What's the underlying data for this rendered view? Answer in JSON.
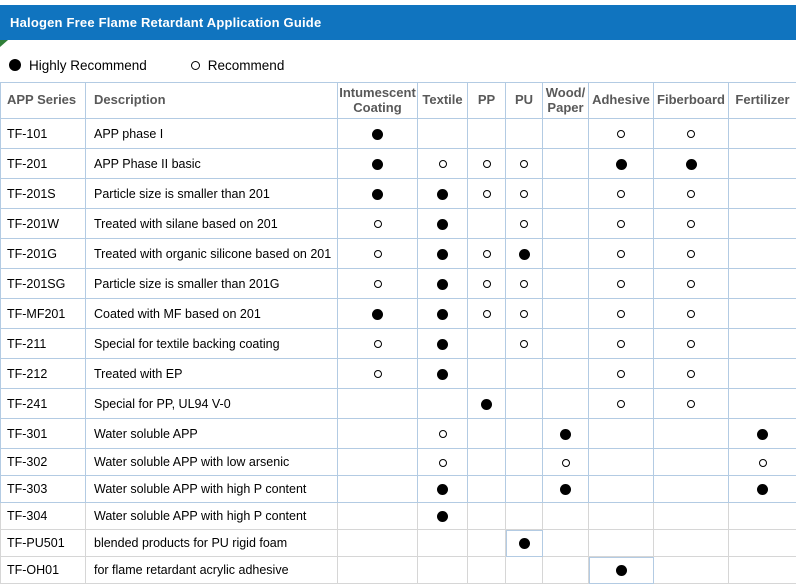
{
  "title": "Halogen Free Flame Retardant Application Guide",
  "legend": {
    "highly_label": "Highly Recommend",
    "recommend_label": "Recommend",
    "highly_symbol": "●",
    "recommend_symbol": "○"
  },
  "table": {
    "columns": [
      {
        "id": "app-series",
        "label": "APP Series"
      },
      {
        "id": "description",
        "label": "Description"
      },
      {
        "id": "intumescent-coating",
        "label": "Intumescent\nCoating"
      },
      {
        "id": "textile",
        "label": "Textile"
      },
      {
        "id": "pp",
        "label": "PP"
      },
      {
        "id": "pu",
        "label": "PU"
      },
      {
        "id": "wood-paper",
        "label": "Wood/\nPaper"
      },
      {
        "id": "adhesive",
        "label": "Adhesive"
      },
      {
        "id": "fiberboard",
        "label": "Fiberboard"
      },
      {
        "id": "fertilizer",
        "label": "Fertilizer"
      }
    ],
    "mark_meanings": {
      "F": "Highly Recommend",
      "O": "Recommend"
    },
    "rows": [
      {
        "series": "TF-101",
        "description": "APP phase I",
        "marks": [
          "F",
          "",
          "",
          "",
          "",
          "O",
          "O",
          ""
        ]
      },
      {
        "series": "TF-201",
        "description": "APP Phase II basic",
        "marks": [
          "F",
          "O",
          "O",
          "O",
          "",
          "F",
          "F",
          ""
        ]
      },
      {
        "series": "TF-201S",
        "description": "Particle size is smaller than 201",
        "marks": [
          "F",
          "F",
          "O",
          "O",
          "",
          "O",
          "O",
          ""
        ]
      },
      {
        "series": "TF-201W",
        "description": "Treated with silane based on 201",
        "marks": [
          "O",
          "F",
          "",
          "O",
          "",
          "O",
          "O",
          ""
        ]
      },
      {
        "series": "TF-201G",
        "description": "Treated with organic silicone based on 201",
        "marks": [
          "O",
          "F",
          "O",
          "F",
          "",
          "O",
          "O",
          ""
        ]
      },
      {
        "series": "TF-201SG",
        "description": "Particle size is smaller than 201G",
        "marks": [
          "O",
          "F",
          "O",
          "O",
          "",
          "O",
          "O",
          ""
        ]
      },
      {
        "series": "TF-MF201",
        "description": "Coated with MF based on 201",
        "marks": [
          "F",
          "F",
          "O",
          "O",
          "",
          "O",
          "O",
          ""
        ]
      },
      {
        "series": "TF-211",
        "description": "Special for textile backing coating",
        "marks": [
          "O",
          "F",
          "",
          "O",
          "",
          "O",
          "O",
          ""
        ]
      },
      {
        "series": "TF-212",
        "description": "Treated with EP",
        "marks": [
          "O",
          "F",
          "",
          "",
          "",
          "O",
          "O",
          ""
        ]
      },
      {
        "series": "TF-241",
        "description": "Special for PP, UL94 V-0",
        "marks": [
          "",
          "",
          "F",
          "",
          "",
          "O",
          "O",
          ""
        ]
      },
      {
        "series": "TF-301",
        "description": "Water soluble APP",
        "marks": [
          "",
          "O",
          "",
          "",
          "F",
          "",
          "",
          "F"
        ]
      },
      {
        "series": "TF-302",
        "description": "Water soluble APP with low arsenic",
        "marks": [
          "",
          "O",
          "",
          "",
          "O",
          "",
          "",
          "O"
        ]
      },
      {
        "series": "TF-303",
        "description": "Water soluble APP with high P content",
        "marks": [
          "",
          "F",
          "",
          "",
          "F",
          "",
          "",
          "F"
        ]
      },
      {
        "series": "TF-304",
        "description": "Water soluble APP with high P content",
        "marks": [
          "",
          "F",
          "",
          "",
          "",
          "",
          "",
          ""
        ]
      },
      {
        "series": "TF-PU501",
        "description": "blended products for PU rigid foam",
        "marks": [
          "",
          "",
          "",
          "F",
          "",
          "",
          "",
          ""
        ]
      },
      {
        "series": "TF-OH01",
        "description": "for flame retardant acrylic adhesive",
        "marks": [
          "",
          "",
          "",
          "",
          "",
          "F",
          "",
          ""
        ]
      }
    ],
    "highlighted_cells": [
      {
        "row": 14,
        "mark": 3
      },
      {
        "row": 15,
        "mark": 5
      }
    ]
  },
  "colors": {
    "title-bar": "#1074BF",
    "title-text": "#FFFFFF",
    "grid-blue": "#B3CBE3",
    "grid-gray": "#D6D6D6",
    "header-text": "#595959",
    "marker-green": "#2F7E38"
  }
}
